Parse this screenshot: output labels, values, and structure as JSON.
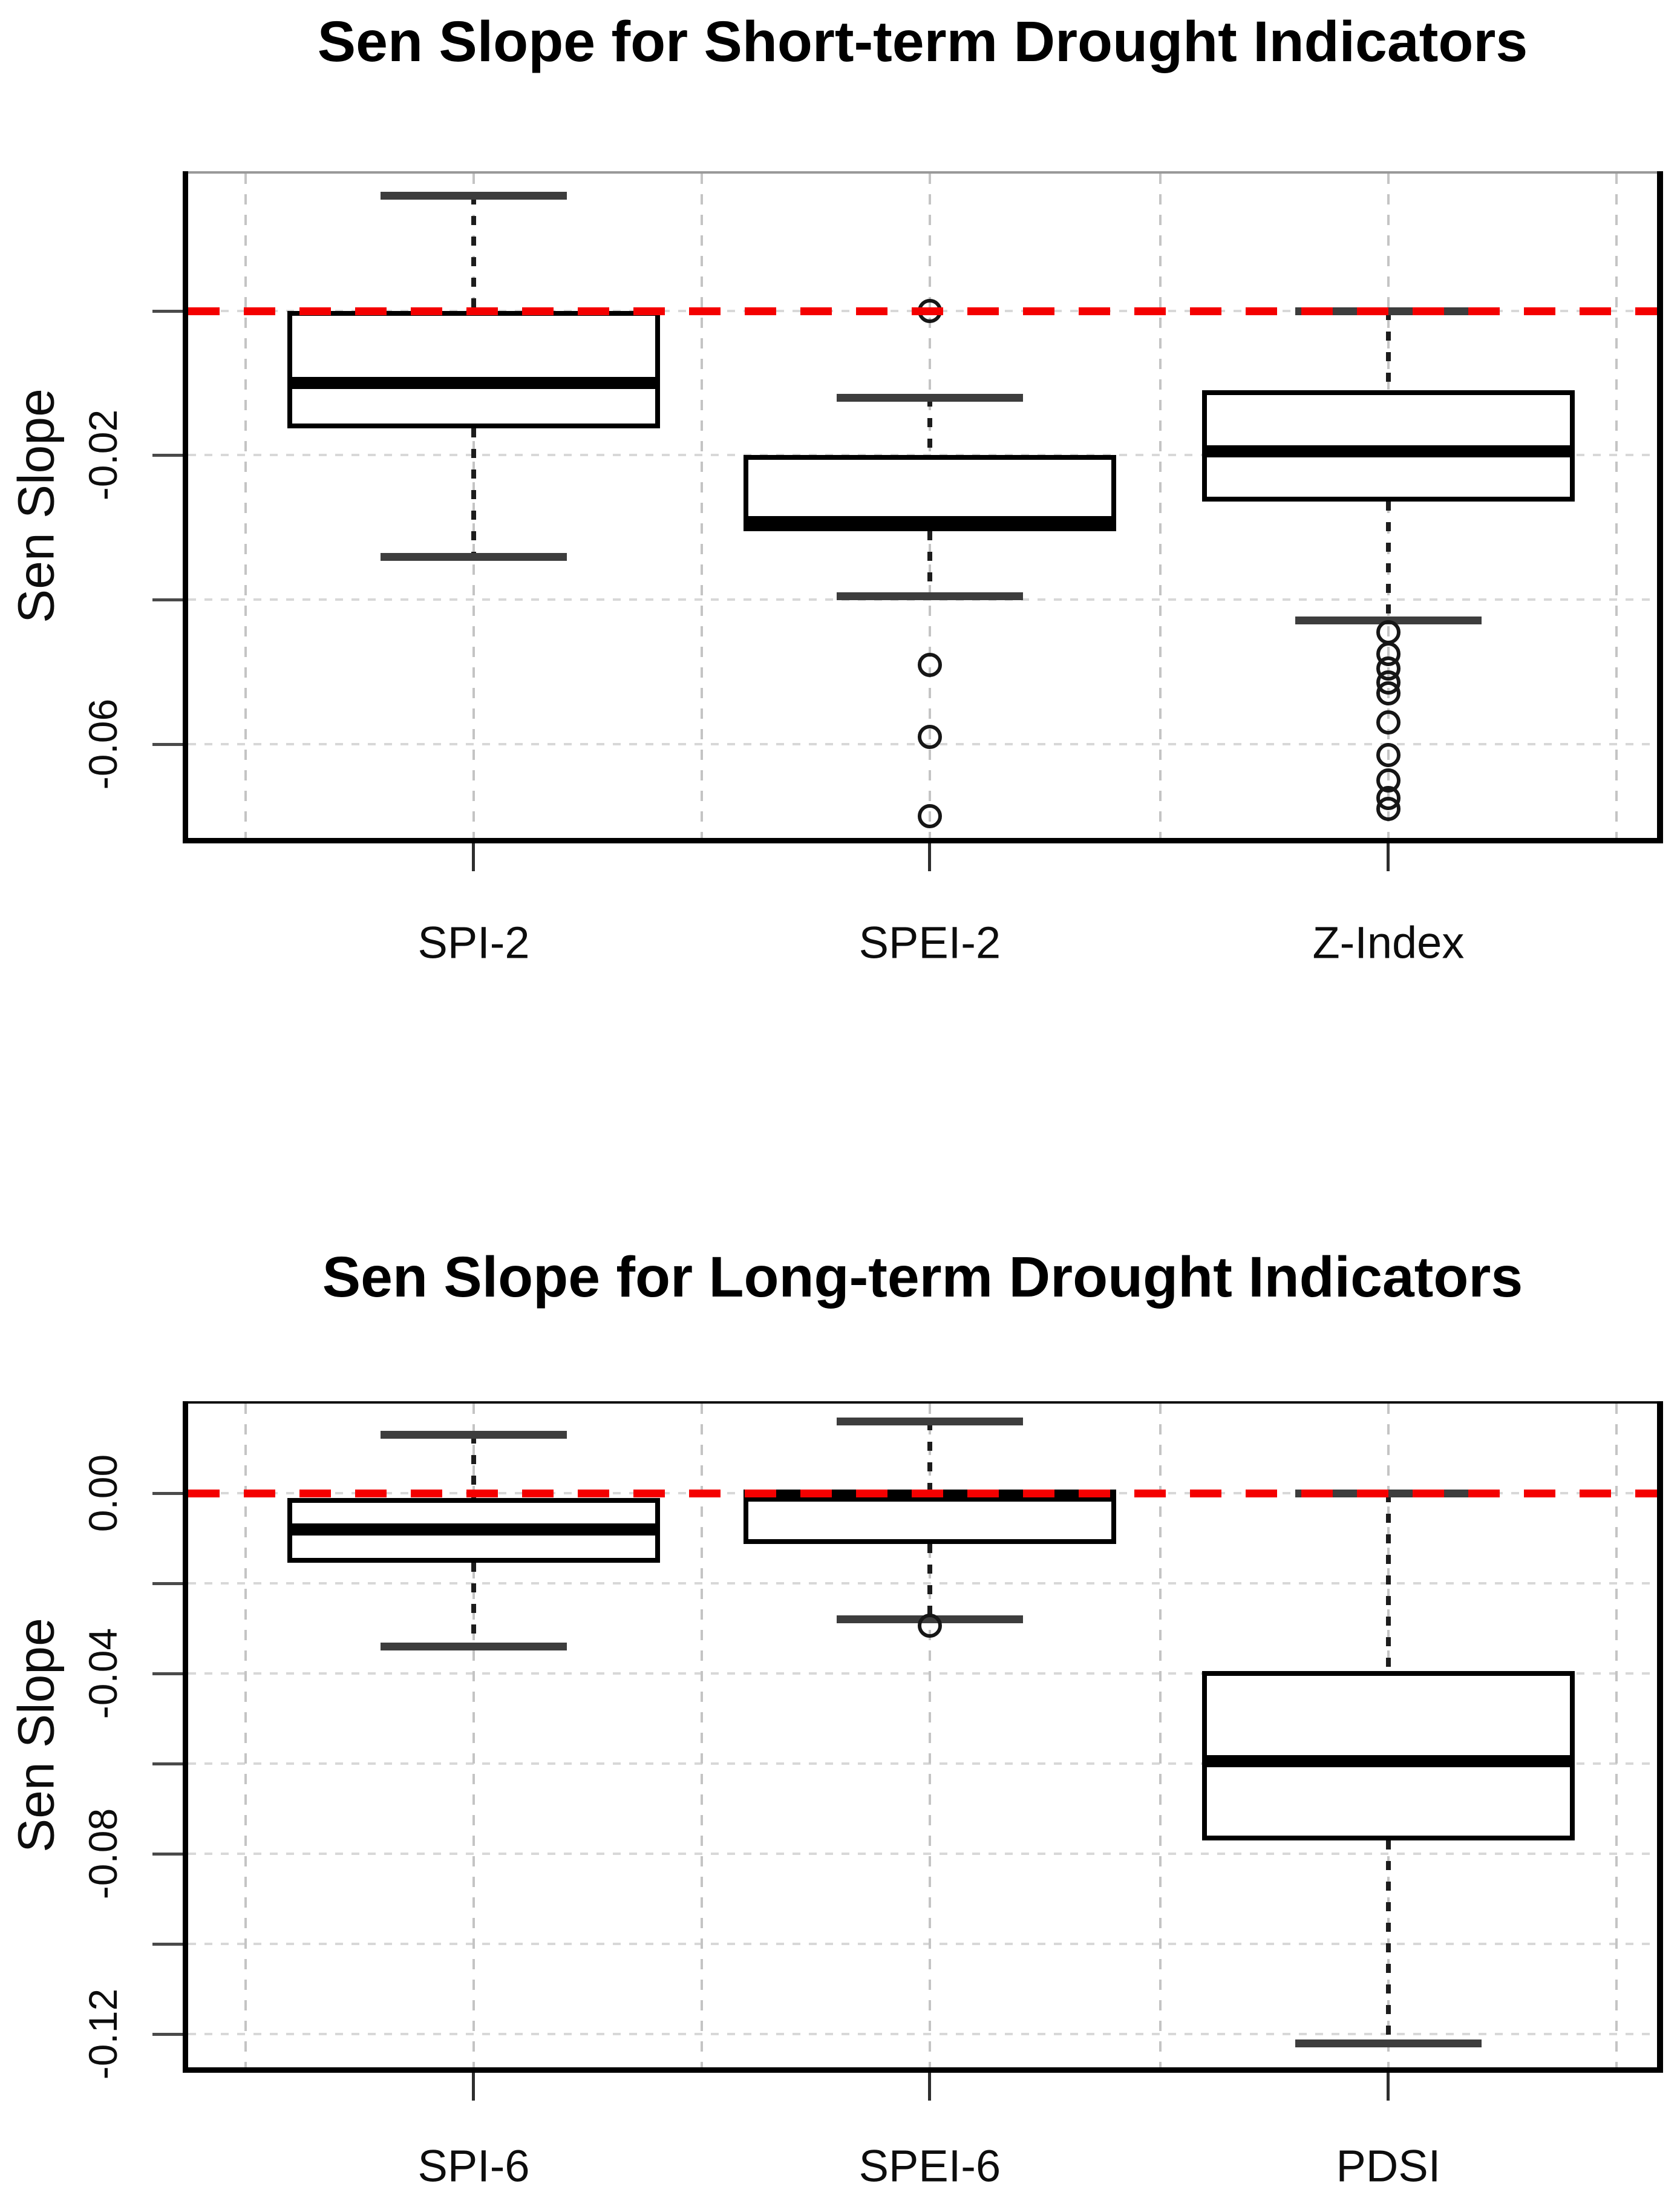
{
  "chart_data": [
    {
      "type": "boxplot",
      "title": "Sen Slope for Short-term Drought Indicators",
      "y_axis_label": "Sen Slope",
      "categories": [
        "SPI-2",
        "SPEI-2",
        "Z-Index"
      ],
      "ylim": [
        -0.073,
        0.019
      ],
      "grid": true,
      "refline": {
        "value": 0,
        "color": "#f40000",
        "style": "dashed"
      },
      "yticks": [
        {
          "value": 0,
          "label": ""
        },
        {
          "value": -0.02,
          "label": "-0.02"
        },
        {
          "value": -0.04,
          "label": ""
        },
        {
          "value": -0.06,
          "label": "-0.06"
        }
      ],
      "series": [
        {
          "name": "SPI-2",
          "whisker_high": 0.016,
          "q3": 0.0,
          "median": -0.01,
          "q1": -0.0163,
          "whisker_low": -0.034,
          "outliers": []
        },
        {
          "name": "SPEI-2",
          "whisker_high": -0.012,
          "q3": -0.02,
          "median": -0.0293,
          "q1": -0.0305,
          "whisker_low": -0.0395,
          "outliers": [
            0.0,
            -0.049,
            -0.059,
            -0.07
          ]
        },
        {
          "name": "Z-Index",
          "whisker_high": 0.0,
          "q3": -0.011,
          "median": -0.0195,
          "q1": -0.0264,
          "whisker_low": -0.0428,
          "outliers": [
            -0.0445,
            -0.0475,
            -0.0495,
            -0.0515,
            -0.053,
            -0.057,
            -0.0615,
            -0.065,
            -0.0675,
            -0.069
          ]
        }
      ]
    },
    {
      "type": "boxplot",
      "title": "Sen Slope for Long-term Drought Indicators",
      "y_axis_label": "Sen Slope",
      "categories": [
        "SPI-6",
        "SPEI-6",
        "PDSI"
      ],
      "ylim": [
        -0.1274,
        0.0199
      ],
      "grid": true,
      "refline": {
        "value": 0,
        "color": "#f40000",
        "style": "dashed"
      },
      "yticks": [
        {
          "value": 0,
          "label": "0.00"
        },
        {
          "value": -0.02,
          "label": ""
        },
        {
          "value": -0.04,
          "label": "-0.04"
        },
        {
          "value": -0.06,
          "label": ""
        },
        {
          "value": -0.08,
          "label": "-0.08"
        },
        {
          "value": -0.1,
          "label": ""
        },
        {
          "value": -0.12,
          "label": "-0.12"
        }
      ],
      "series": [
        {
          "name": "SPI-6",
          "whisker_high": 0.013,
          "q3": -0.001,
          "median": -0.008,
          "q1": -0.0154,
          "whisker_low": -0.034,
          "outliers": []
        },
        {
          "name": "SPEI-6",
          "whisker_high": 0.016,
          "q3": 0.0,
          "median": -0.0005,
          "q1": -0.0112,
          "whisker_low": -0.0279,
          "outliers": [
            -0.0294
          ]
        },
        {
          "name": "PDSI",
          "whisker_high": 0.0,
          "q3": -0.0394,
          "median": -0.0594,
          "q1": -0.0771,
          "whisker_low": -0.122,
          "outliers": []
        }
      ]
    }
  ],
  "colors": {
    "refline": "#f40000",
    "box_border": "#000000",
    "median": "#000000",
    "whisker_cap": "#3d3d3d",
    "grid_h": "#d8d8d8",
    "grid_v": "#c4c4c4",
    "text": "#0d0d0d"
  }
}
